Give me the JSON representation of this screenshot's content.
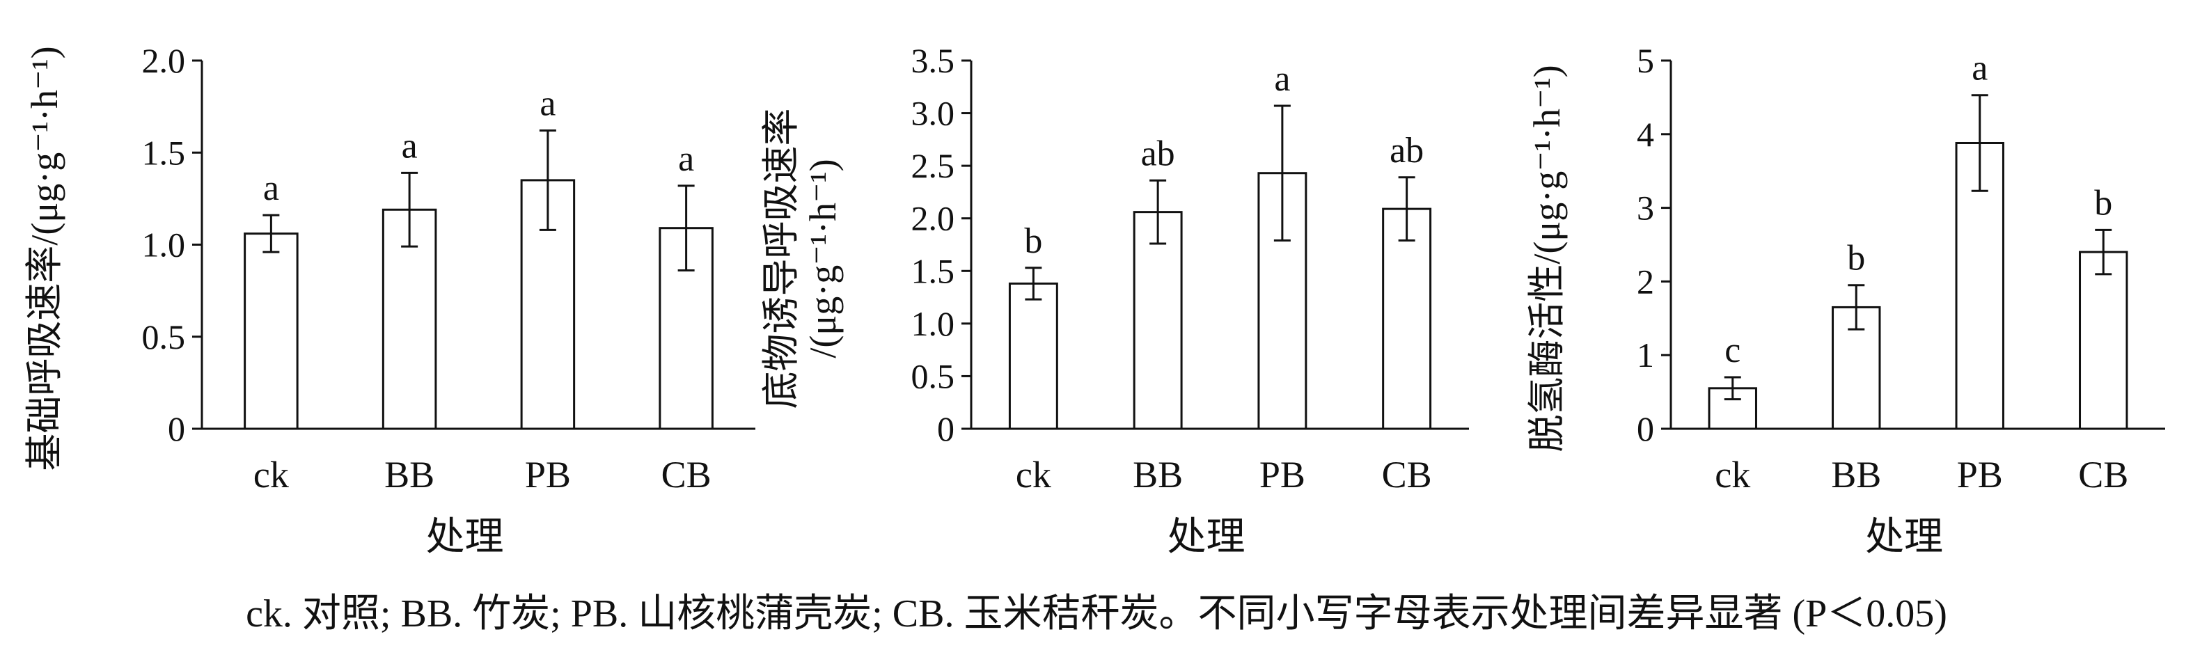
{
  "chart_data": [
    {
      "type": "bar",
      "categories": [
        "ck",
        "BB",
        "PB",
        "CB"
      ],
      "values": [
        1.06,
        1.19,
        1.35,
        1.09
      ],
      "errors": [
        0.1,
        0.2,
        0.27,
        0.23
      ],
      "significance": [
        "a",
        "a",
        "a",
        "a"
      ],
      "xlabel": "处理",
      "ylabel": "基础呼吸速率/(μg·g⁻¹·h⁻¹)",
      "ylim": [
        0,
        2.0
      ],
      "yticks": [
        "0",
        "0.5",
        "1.0",
        "1.5",
        "2.0"
      ],
      "ytick_values": [
        0,
        0.5,
        1.0,
        1.5,
        2.0
      ]
    },
    {
      "type": "bar",
      "categories": [
        "ck",
        "BB",
        "PB",
        "CB"
      ],
      "values": [
        1.38,
        2.06,
        2.43,
        2.09
      ],
      "errors": [
        0.15,
        0.3,
        0.64,
        0.3
      ],
      "significance": [
        "b",
        "ab",
        "a",
        "ab"
      ],
      "xlabel": "处理",
      "ylabel": [
        "底物诱导呼吸速率",
        "/(μg·g⁻¹·h⁻¹)"
      ],
      "ylim": [
        0,
        3.5
      ],
      "yticks": [
        "0",
        "0.5",
        "1.0",
        "1.5",
        "2.0",
        "2.5",
        "3.0",
        "3.5"
      ],
      "ytick_values": [
        0,
        0.5,
        1.0,
        1.5,
        2.0,
        2.5,
        3.0,
        3.5
      ]
    },
    {
      "type": "bar",
      "categories": [
        "ck",
        "BB",
        "PB",
        "CB"
      ],
      "values": [
        0.55,
        1.65,
        3.88,
        2.4
      ],
      "errors": [
        0.15,
        0.3,
        0.65,
        0.3
      ],
      "significance": [
        "c",
        "b",
        "a",
        "b"
      ],
      "xlabel": "处理",
      "ylabel": "脱氢酶活性/(μg·g⁻¹·h⁻¹)",
      "ylim": [
        0,
        5
      ],
      "yticks": [
        "0",
        "1",
        "2",
        "3",
        "4",
        "5"
      ],
      "ytick_values": [
        0,
        1,
        2,
        3,
        4,
        5
      ]
    }
  ],
  "caption": "ck. 对照; BB. 竹炭; PB. 山核桃蒲壳炭; CB. 玉米秸秆炭。不同小写字母表示处理间差异显著 (P＜0.05)",
  "colors": {
    "bar_fill": "#ffffff",
    "stroke": "#111111"
  }
}
